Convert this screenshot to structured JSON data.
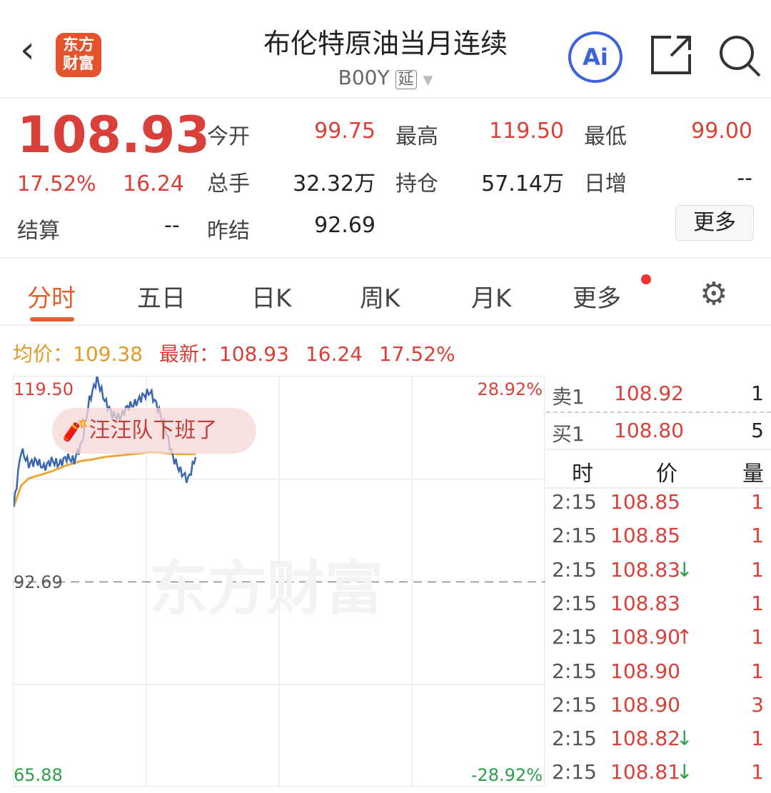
{
  "header": {
    "back_icon": "chevron-left-icon",
    "logo_text_1": "东方",
    "logo_text_2": "财富",
    "title": "布伦特原油当月连续",
    "code": "B00Y",
    "delay_tag": "延",
    "ai_label": "Ai",
    "share_icon": "share-icon",
    "search_icon": "search-icon"
  },
  "quote": {
    "price": "108.93",
    "change_pct": "17.52%",
    "change": "16.24",
    "settle_label": "结算",
    "settle": "--",
    "fields": [
      {
        "label": "今开",
        "value": "99.75"
      },
      {
        "label": "最高",
        "value": "119.50"
      },
      {
        "label": "最低",
        "value": "99.00"
      },
      {
        "label": "总手",
        "value": "32.32万"
      },
      {
        "label": "持仓",
        "value": "57.14万"
      },
      {
        "label": "日增",
        "value": "--"
      },
      {
        "label": "昨结",
        "value": "92.69"
      }
    ],
    "more": "更多"
  },
  "tabs": [
    {
      "label": "分时",
      "active": true
    },
    {
      "label": "五日"
    },
    {
      "label": "日K"
    },
    {
      "label": "周K"
    },
    {
      "label": "月K"
    },
    {
      "label": "更多"
    }
  ],
  "info": {
    "avg_label": "均价：",
    "avg": "109.38",
    "latest_label": "最新：",
    "latest": "108.93",
    "change": "16.24",
    "pct": "17.52%"
  },
  "chart_data": {
    "type": "line",
    "y_max": "119.50",
    "y_mid": "92.69",
    "y_min": "65.88",
    "pct_max": "28.92%",
    "pct_min": "-28.92%",
    "ylim": [
      65.88,
      119.5
    ],
    "ref": 92.69,
    "price": [
      102.46,
      109.91,
      108.05,
      108.51,
      107.58,
      108.51,
      108.05,
      108.98,
      108.51,
      110.84,
      116.43,
      119.22,
      116.43,
      114.57,
      114.1,
      115.5,
      115.96,
      116.89,
      117.54,
      115.5,
      112.7,
      108.98,
      107.12,
      106.0,
      108.98
    ],
    "avg": [
      102.46,
      105.26,
      106.19,
      106.5,
      106.8,
      107.12,
      107.5,
      107.9,
      108.2,
      108.51,
      108.6,
      108.8,
      108.98,
      109.1,
      109.2,
      109.3,
      109.4,
      109.5,
      109.63,
      109.6,
      109.5,
      109.4,
      109.35,
      109.35,
      109.35
    ],
    "colors": {
      "price": "#3a67b0",
      "avg": "#e8a93a"
    },
    "banner": "汪汪队下班了",
    "watermark": "东方财富"
  },
  "orderbook": {
    "ask_label": "卖1",
    "ask": "108.92",
    "ask_vol": "1",
    "bid_label": "买1",
    "bid": "108.80",
    "bid_vol": "5",
    "headers": [
      "时",
      "价",
      "量"
    ],
    "trades": [
      {
        "t": "2:15",
        "p": "108.85",
        "a": "",
        "v": "1"
      },
      {
        "t": "2:15",
        "p": "108.85",
        "a": "",
        "v": "1"
      },
      {
        "t": "2:15",
        "p": "108.83",
        "a": "↓",
        "v": "1"
      },
      {
        "t": "2:15",
        "p": "108.83",
        "a": "",
        "v": "1"
      },
      {
        "t": "2:15",
        "p": "108.90",
        "a": "↑",
        "v": "1"
      },
      {
        "t": "2:15",
        "p": "108.90",
        "a": "",
        "v": "1"
      },
      {
        "t": "2:15",
        "p": "108.90",
        "a": "",
        "v": "3"
      },
      {
        "t": "2:15",
        "p": "108.82",
        "a": "↓",
        "v": "1"
      },
      {
        "t": "2:15",
        "p": "108.81",
        "a": "↓",
        "v": "1"
      }
    ]
  }
}
